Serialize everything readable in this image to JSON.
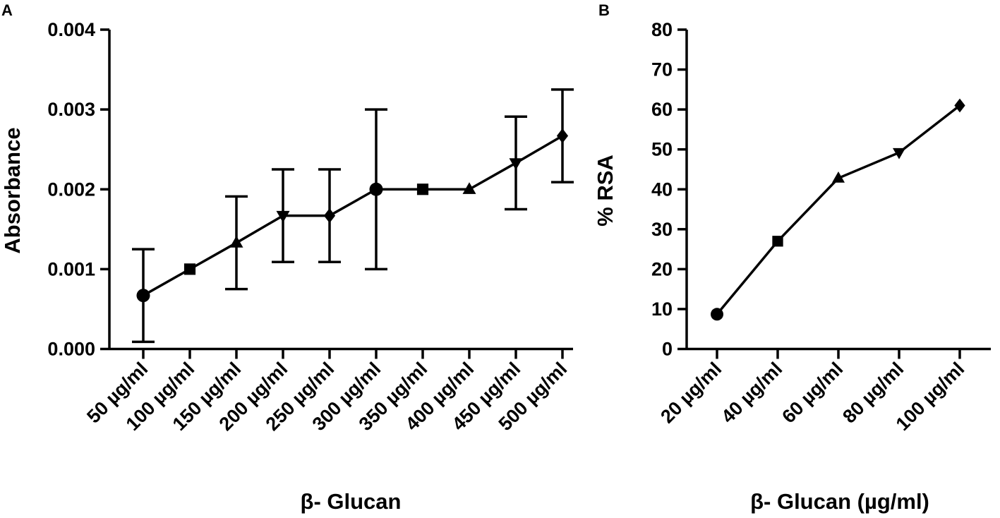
{
  "chart_data": [
    {
      "panel": "A",
      "type": "line",
      "title": "",
      "xlabel": "β- Glucan",
      "ylabel": "Absorbance",
      "categories": [
        "50 µg/ml",
        "100 µg/ml",
        "150 µg/ml",
        "200 µg/ml",
        "250 µg/ml",
        "300 µg/ml",
        "350 µg/ml",
        "400 µg/ml",
        "450 µg/ml",
        "500 µg/ml"
      ],
      "values": [
        0.00067,
        0.001,
        0.00133,
        0.00167,
        0.00167,
        0.002,
        0.002,
        0.002,
        0.00233,
        0.00267
      ],
      "error": [
        0.00058,
        0,
        0.00058,
        0.00058,
        0.00058,
        0.001,
        0,
        0,
        0.00058,
        0.00058
      ],
      "markers": [
        "circle",
        "square",
        "triangle-up",
        "triangle-down",
        "diamond",
        "circle",
        "square",
        "triangle-up",
        "triangle-down",
        "diamond"
      ],
      "ylim": [
        0,
        0.004
      ],
      "yticks": [
        "0.000",
        "0.001",
        "0.002",
        "0.003",
        "0.004"
      ],
      "grid": false,
      "legend": "none"
    },
    {
      "panel": "B",
      "type": "line",
      "title": "",
      "xlabel": "β- Glucan (µg/ml)",
      "ylabel": "% RSA",
      "categories": [
        "20 µg/ml",
        "40 µg/ml",
        "60 µg/ml",
        "80 µg/ml",
        "100 µg/ml"
      ],
      "values": [
        8.7,
        27,
        42.8,
        49.2,
        61
      ],
      "markers": [
        "circle",
        "square",
        "triangle-up",
        "triangle-down",
        "diamond"
      ],
      "ylim": [
        0,
        80
      ],
      "yticks": [
        "0",
        "10",
        "20",
        "30",
        "40",
        "50",
        "60",
        "70",
        "80"
      ],
      "grid": false,
      "legend": "none"
    }
  ]
}
